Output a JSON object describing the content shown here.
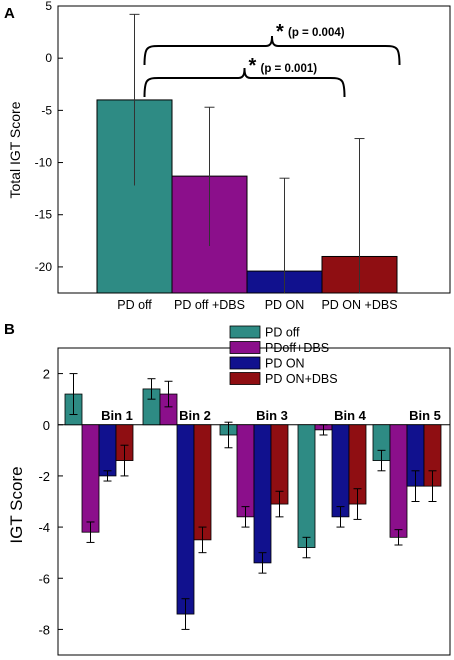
{
  "colors": {
    "PD off": "#2e8b84",
    "PD off +DBS": "#8b0f8b",
    "PD ON": "#11118e",
    "PD ON +DBS": "#8f0e12"
  },
  "chart_data": [
    {
      "panel_label": "A",
      "type": "bar",
      "ylabel": "Total IGT Score",
      "ylim": [
        -22.5,
        5
      ],
      "yticks": [
        5,
        0,
        -5,
        -10,
        -15,
        -20
      ],
      "categories": [
        "PD off",
        "PD off +DBS",
        "PD ON",
        "PD ON +DBS"
      ],
      "values": [
        -4.0,
        -11.3,
        -20.4,
        -19.0
      ],
      "error_low": [
        -12.2,
        -18.0,
        -29.2,
        -30.5
      ],
      "error_high": [
        4.2,
        -4.7,
        -11.5,
        -7.7
      ],
      "annotations": [
        {
          "from": "PD off",
          "to": "PD ON +DBS",
          "star": "*",
          "text": "(p = 0.004)"
        },
        {
          "from": "PD off",
          "to": "PD ON",
          "star": "*",
          "text": "(p = 0.001)"
        }
      ]
    },
    {
      "panel_label": "B",
      "type": "bar",
      "ylabel": "IGT Score",
      "ylim": [
        -9,
        3
      ],
      "yticks": [
        2,
        0,
        -2,
        -4,
        -6,
        -8
      ],
      "categories": [
        "Bin 1",
        "Bin 2",
        "Bin 3",
        "Bin 4",
        "Bin 5"
      ],
      "legend": [
        "PD off",
        "PDoff+DBS",
        "PD ON",
        "PD ON+DBS"
      ],
      "legend_placement": "top-right",
      "series": [
        {
          "name": "PD off",
          "values": [
            1.2,
            1.4,
            -0.4,
            -4.8,
            -1.4
          ],
          "error": [
            0.8,
            0.4,
            0.5,
            0.4,
            0.4
          ]
        },
        {
          "name": "PDoff+DBS",
          "values": [
            -4.2,
            1.2,
            -3.6,
            -0.2,
            -4.4
          ],
          "error": [
            0.4,
            0.5,
            0.4,
            0.2,
            0.3
          ]
        },
        {
          "name": "PD ON",
          "values": [
            -2.0,
            -7.4,
            -5.4,
            -3.6,
            -2.4
          ],
          "error": [
            0.2,
            0.6,
            0.4,
            0.4,
            0.6
          ]
        },
        {
          "name": "PD ON+DBS",
          "values": [
            -1.4,
            -4.5,
            -3.1,
            -3.1,
            -2.4
          ],
          "error": [
            0.6,
            0.5,
            0.5,
            0.6,
            0.6
          ]
        }
      ]
    }
  ]
}
